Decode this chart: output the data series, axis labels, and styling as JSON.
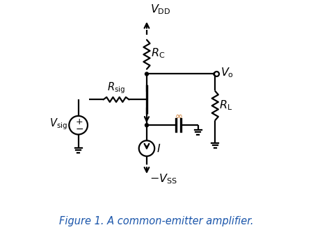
{
  "title": "Figure 1. A common-emitter amplifier.",
  "title_fontsize": 10.5,
  "background_color": "#ffffff",
  "line_color": "#000000",
  "lw": 1.6,
  "inf_color": "#c87020",
  "labels": {
    "VDD": "$V_{\\mathrm{DD}}$",
    "RC": "$R_{\\mathrm{C}}$",
    "Vo": "$V_{\\mathrm{o}}$",
    "RL": "$R_{\\mathrm{L}}$",
    "Rsig": "$R_{\\mathrm{sig}}$",
    "Vsig": "$V_{\\mathrm{sig}}$",
    "I": "$I$",
    "VSS": "$-V_{\\mathrm{SS}}$"
  }
}
